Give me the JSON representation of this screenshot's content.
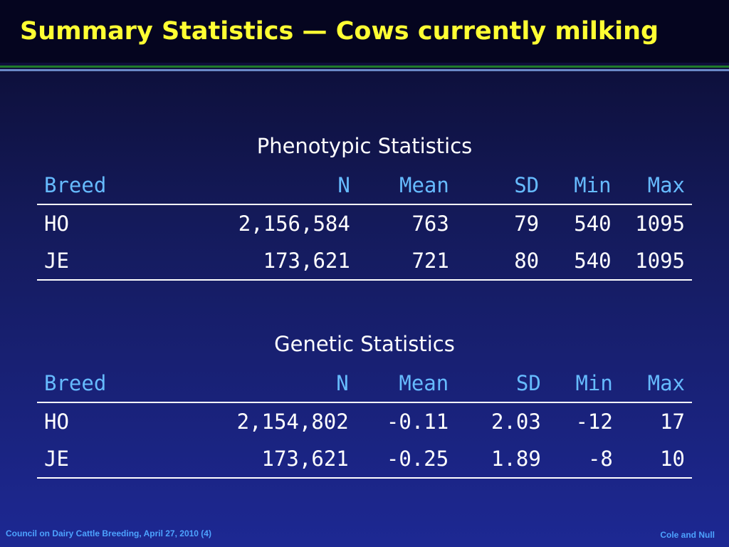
{
  "slide": {
    "title": "Summary Statistics — Cows currently milking"
  },
  "phenotypic": {
    "title": "Phenotypic Statistics",
    "headers": [
      "Breed",
      "N",
      "Mean",
      "SD",
      "Min",
      "Max"
    ],
    "rows": [
      [
        "HO",
        "2,156,584",
        "763",
        "79",
        "540",
        "1095"
      ],
      [
        "JE",
        "173,621",
        "721",
        "80",
        "540",
        "1095"
      ]
    ]
  },
  "genetic": {
    "title": "Genetic Statistics",
    "headers": [
      "Breed",
      "N",
      "Mean",
      "SD",
      "Min",
      "Max"
    ],
    "rows": [
      [
        "HO",
        "2,154,802",
        "-0.11",
        "2.03",
        "-12",
        "17"
      ],
      [
        "JE",
        "173,621",
        "-0.25",
        "1.89",
        "-8",
        "10"
      ]
    ]
  },
  "footer": {
    "left": "Council on Dairy Cattle Breeding, April 27, 2010 (4)",
    "right": "Cole and Null"
  },
  "colors": {
    "title": "#ffff33",
    "header_text": "#66bbff",
    "footer_text": "#4da3ff",
    "background_top": "#0b0b2e",
    "background_bottom": "#1d2893"
  }
}
